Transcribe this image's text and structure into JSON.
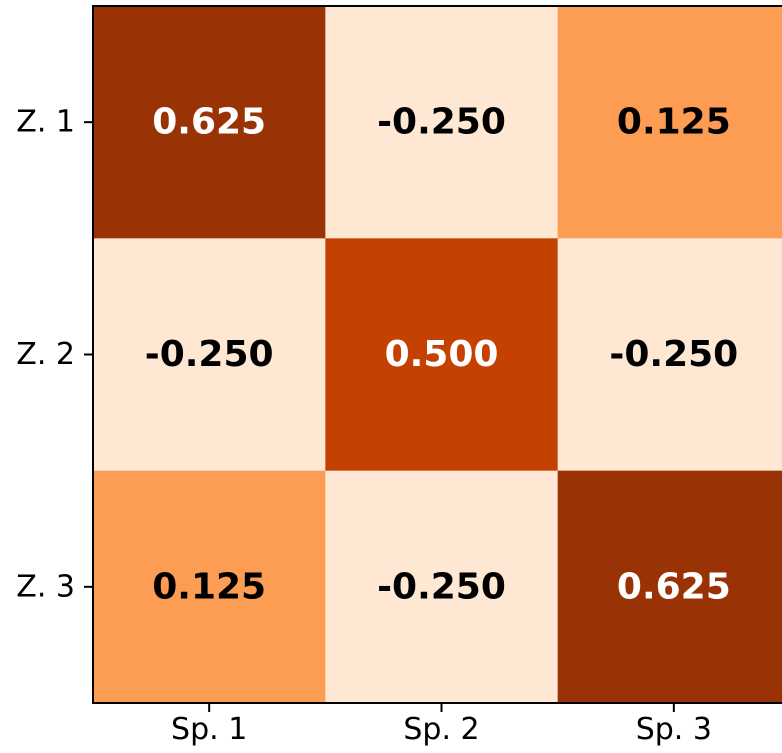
{
  "chart_data": {
    "type": "heatmap",
    "title": "",
    "xlabel": "",
    "ylabel": "",
    "x_categories": [
      "Sp. 1",
      "Sp. 2",
      "Sp. 3"
    ],
    "y_categories": [
      "Z. 1",
      "Z. 2",
      "Z. 3"
    ],
    "values": [
      [
        0.625,
        -0.25,
        0.125
      ],
      [
        -0.25,
        0.5,
        -0.25
      ],
      [
        0.125,
        -0.25,
        0.625
      ]
    ],
    "value_labels": [
      [
        "0.625",
        "-0.250",
        "0.125"
      ],
      [
        "-0.250",
        "0.500",
        "-0.250"
      ],
      [
        "0.125",
        "-0.250",
        "0.625"
      ]
    ],
    "colormap": "Oranges",
    "cell_colors": [
      [
        "#993205",
        "#fee8d4",
        "#fd9d53"
      ],
      [
        "#fee8d4",
        "#c54102",
        "#fee8d4"
      ],
      [
        "#fd9d53",
        "#fee8d4",
        "#993205"
      ]
    ],
    "label_colors": [
      [
        "#ffffff",
        "#000000",
        "#000000"
      ],
      [
        "#000000",
        "#ffffff",
        "#000000"
      ],
      [
        "#000000",
        "#000000",
        "#ffffff"
      ]
    ],
    "colorbar": false,
    "grid": false
  }
}
